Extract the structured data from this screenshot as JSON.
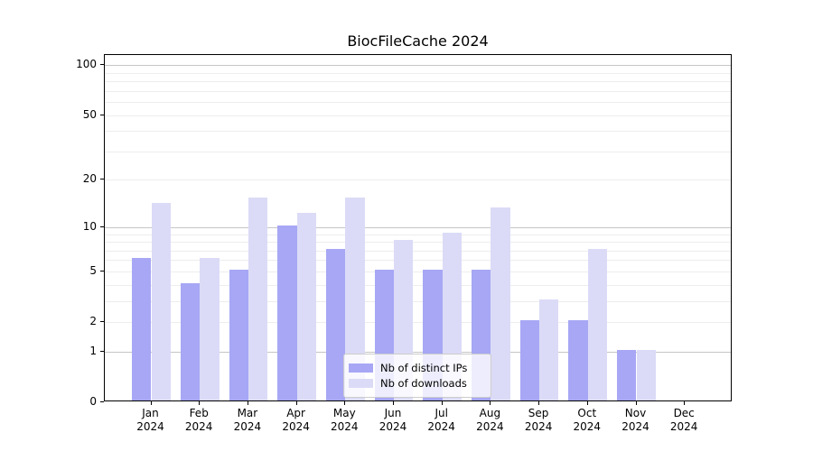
{
  "title": "BiocFileCache 2024",
  "chart_data": {
    "type": "bar",
    "title": "BiocFileCache 2024",
    "categories": [
      "Jan",
      "Feb",
      "Mar",
      "Apr",
      "May",
      "Jun",
      "Jul",
      "Aug",
      "Sep",
      "Oct",
      "Nov",
      "Dec"
    ],
    "category_year": "2024",
    "series": [
      {
        "name": "Nb of distinct IPs",
        "color": "#a7a7f5",
        "values": [
          6,
          4,
          5,
          10,
          7,
          5,
          5,
          5,
          2,
          2,
          1,
          0
        ]
      },
      {
        "name": "Nb of downloads",
        "color": "#dbdbf7",
        "values": [
          14,
          6,
          15,
          12,
          15,
          8,
          9,
          13,
          3,
          7,
          1,
          0
        ]
      }
    ],
    "xlabel": "",
    "ylabel": "",
    "scale": "log1p",
    "ylim": [
      0,
      115
    ],
    "y_ticks": [
      0,
      1,
      2,
      5,
      10,
      20,
      50,
      100
    ],
    "grid_major": [
      1,
      10,
      100
    ],
    "grid_minor": [
      2,
      3,
      4,
      5,
      6,
      7,
      8,
      9,
      20,
      30,
      40,
      50,
      60,
      70,
      80,
      90
    ],
    "grid": "on",
    "legend_position": "inside-bottom-center",
    "colors": {
      "grid_major": "#c6c6c6",
      "grid_minor": "#ededed",
      "axis": "#000000",
      "legend_border": "#cccccc"
    }
  }
}
